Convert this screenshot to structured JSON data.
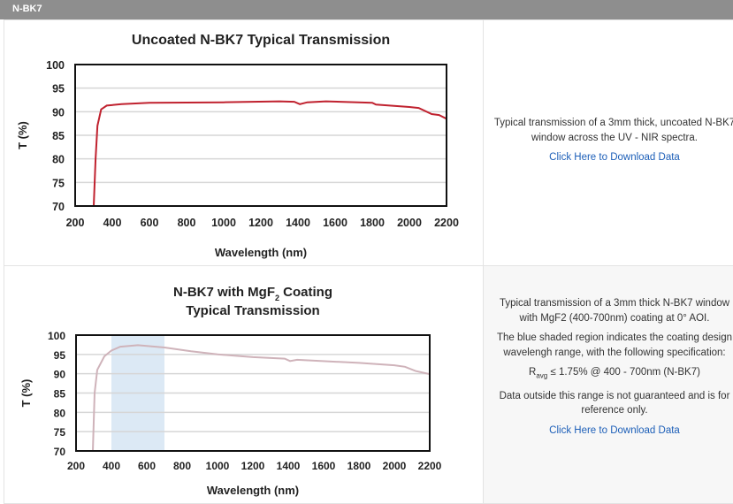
{
  "header": {
    "title": "N-BK7"
  },
  "rows": [
    {
      "description": [
        "Typical transmission of a 3mm thick, uncoated N-BK7 window across the UV - NIR spectra."
      ],
      "link": "Click Here to Download Data"
    },
    {
      "description": [
        "Typical transmission of a 3mm thick N-BK7 window with MgF2 (400-700nm) coating at 0° AOI.",
        "The blue shaded region indicates the coating design wavelengh range, with the following specification:"
      ],
      "spec_main": "R",
      "spec_sub": "avg",
      "spec_rest": " ≤ 1.75% @ 400 - 700nm (N-BK7)",
      "note": "Data outside this range is not guaranteed and is for reference only.",
      "link": "Click Here to Download Data"
    }
  ],
  "chart_data": [
    {
      "type": "line",
      "title": "Uncoated N-BK7 Typical Transmission",
      "xlabel": "Wavelength (nm)",
      "ylabel": "T (%)",
      "xlim": [
        200,
        2200
      ],
      "ylim": [
        70,
        100
      ],
      "xticks": [
        200,
        400,
        600,
        800,
        1000,
        1200,
        1400,
        1600,
        1800,
        2000,
        2200
      ],
      "yticks": [
        70,
        75,
        80,
        85,
        90,
        95,
        100
      ],
      "grid": true,
      "color": "#c0222f",
      "x": [
        300,
        310,
        320,
        340,
        370,
        450,
        600,
        1000,
        1300,
        1380,
        1410,
        1450,
        1550,
        1800,
        1820,
        2000,
        2050,
        2120,
        2160,
        2200
      ],
      "y": [
        70,
        80,
        87,
        90.5,
        91.3,
        91.6,
        91.9,
        92,
        92.2,
        92.1,
        91.6,
        92,
        92.2,
        91.9,
        91.5,
        91,
        90.8,
        89.5,
        89.3,
        88.5
      ]
    },
    {
      "type": "line",
      "title": "N-BK7 with MgF",
      "title_sub": "2",
      "title_rest": " Coating",
      "title_line2": "Typical Transmission",
      "xlabel": "Wavelength (nm)",
      "ylabel": "T (%)",
      "xlim": [
        200,
        2200
      ],
      "ylim": [
        70,
        100
      ],
      "xticks": [
        200,
        400,
        600,
        800,
        1000,
        1200,
        1400,
        1600,
        1800,
        2000,
        2200
      ],
      "yticks": [
        70,
        75,
        80,
        85,
        90,
        95,
        100
      ],
      "grid": true,
      "color": "#cfb3ba",
      "shaded_range": [
        400,
        700
      ],
      "shade_color": "#dce9f5",
      "x": [
        295,
        305,
        320,
        360,
        400,
        450,
        550,
        700,
        850,
        1000,
        1200,
        1380,
        1410,
        1450,
        1800,
        2000,
        2060,
        2120,
        2200
      ],
      "y": [
        70,
        85,
        91,
        94.5,
        96,
        97,
        97.4,
        96.8,
        95.8,
        95,
        94.3,
        93.9,
        93.3,
        93.6,
        92.8,
        92.2,
        91.8,
        90.7,
        89.9
      ]
    }
  ]
}
